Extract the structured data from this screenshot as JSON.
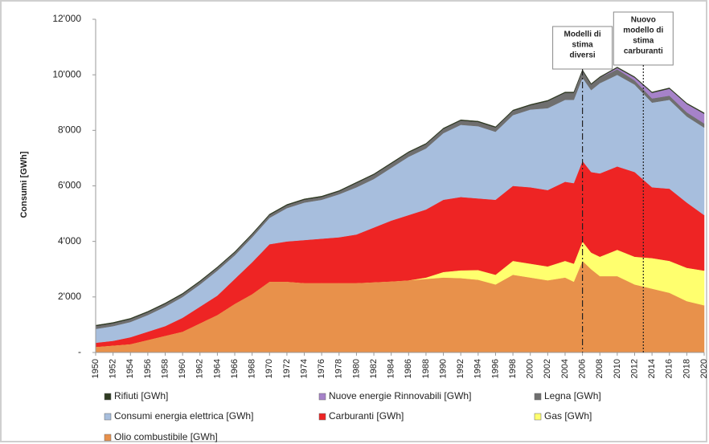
{
  "chart_data": {
    "type": "stacked_area",
    "y_label": "Consumi [GWh]",
    "x": [
      1950,
      1952,
      1954,
      1956,
      1958,
      1960,
      1962,
      1964,
      1966,
      1968,
      1970,
      1972,
      1974,
      1976,
      1978,
      1980,
      1982,
      1984,
      1986,
      1988,
      1990,
      1992,
      1994,
      1996,
      1998,
      2000,
      2002,
      2004,
      2005,
      2006,
      2007,
      2008,
      2010,
      2012,
      2014,
      2016,
      2018,
      2020
    ],
    "xlim": [
      1950,
      2020
    ],
    "xticks": [
      1950,
      1952,
      1954,
      1956,
      1958,
      1960,
      1962,
      1964,
      1966,
      1968,
      1970,
      1972,
      1974,
      1976,
      1978,
      1980,
      1982,
      1984,
      1986,
      1988,
      1990,
      1992,
      1994,
      1996,
      1998,
      2000,
      2002,
      2004,
      2006,
      2008,
      2010,
      2012,
      2014,
      2016,
      2018,
      2020
    ],
    "ylim": [
      0,
      12000
    ],
    "yticks": [
      {
        "value": 0,
        "label": "-"
      },
      {
        "value": 2000,
        "label": "2'000"
      },
      {
        "value": 4000,
        "label": "4'000"
      },
      {
        "value": 6000,
        "label": "6'000"
      },
      {
        "value": 8000,
        "label": "8'000"
      },
      {
        "value": 10000,
        "label": "10'000"
      },
      {
        "value": 12000,
        "label": "12'000"
      }
    ],
    "stack_order": "reverse",
    "series": [
      {
        "name": "Rifiuti [GWh]",
        "color": "#2f3b22",
        "values": [
          30,
          30,
          30,
          30,
          30,
          30,
          30,
          30,
          30,
          30,
          30,
          30,
          30,
          30,
          30,
          30,
          30,
          30,
          30,
          30,
          30,
          30,
          30,
          30,
          30,
          30,
          30,
          30,
          30,
          30,
          30,
          30,
          30,
          30,
          30,
          30,
          30,
          30
        ]
      },
      {
        "name": "Nuove energie Rinnovabili [GWh]",
        "color": "#a682c9",
        "values": [
          0,
          0,
          0,
          0,
          0,
          0,
          0,
          0,
          0,
          0,
          0,
          0,
          0,
          0,
          0,
          0,
          0,
          0,
          0,
          0,
          0,
          0,
          0,
          0,
          0,
          0,
          0,
          0,
          0,
          0,
          0,
          0,
          50,
          100,
          200,
          250,
          300,
          350
        ]
      },
      {
        "name": "Legna [GWh]",
        "color": "#6f6f6f",
        "values": [
          100,
          100,
          100,
          100,
          100,
          100,
          100,
          100,
          100,
          100,
          100,
          100,
          100,
          100,
          100,
          150,
          150,
          150,
          150,
          150,
          150,
          150,
          150,
          150,
          150,
          150,
          250,
          250,
          250,
          250,
          200,
          200,
          200,
          150,
          150,
          150,
          150,
          150
        ]
      },
      {
        "name": "Consumi energia elettrica [GWh]",
        "color": "#a7bedd",
        "values": [
          500,
          530,
          550,
          600,
          700,
          750,
          800,
          900,
          850,
          900,
          950,
          1200,
          1350,
          1400,
          1550,
          1700,
          1750,
          1900,
          2100,
          2200,
          2400,
          2600,
          2600,
          2450,
          2550,
          2800,
          2950,
          2950,
          3000,
          3000,
          2950,
          3250,
          3300,
          3150,
          3050,
          3200,
          3100,
          3150
        ]
      },
      {
        "name": "Carburanti [GWh]",
        "color": "#ee2424",
        "values": [
          150,
          170,
          250,
          300,
          350,
          500,
          600,
          700,
          900,
          1150,
          1350,
          1450,
          1550,
          1600,
          1650,
          1750,
          1970,
          2190,
          2350,
          2450,
          2600,
          2640,
          2580,
          2700,
          2700,
          2750,
          2750,
          2850,
          2900,
          2900,
          2900,
          3000,
          3000,
          3050,
          2550,
          2600,
          2350,
          2000
        ]
      },
      {
        "name": "Gas [GWh]",
        "color": "#ffff6e",
        "values": [
          0,
          0,
          0,
          0,
          0,
          0,
          0,
          0,
          0,
          0,
          0,
          0,
          0,
          0,
          0,
          0,
          0,
          0,
          0,
          50,
          200,
          280,
          350,
          350,
          500,
          500,
          500,
          600,
          650,
          700,
          600,
          700,
          950,
          1000,
          1100,
          1150,
          1200,
          1250
        ]
      },
      {
        "name": "Olio combustibile [GWh]",
        "color": "#e8914b",
        "values": [
          200,
          250,
          300,
          450,
          600,
          750,
          1050,
          1350,
          1750,
          2100,
          2550,
          2550,
          2500,
          2500,
          2500,
          2500,
          2530,
          2560,
          2600,
          2650,
          2700,
          2680,
          2620,
          2450,
          2800,
          2700,
          2600,
          2700,
          2550,
          3300,
          3000,
          2750,
          2750,
          2450,
          2300,
          2150,
          1850,
          1700
        ]
      }
    ],
    "annotations": [
      {
        "x": 2006,
        "lines": [
          "Modelli di",
          "stima",
          "diversi"
        ],
        "style": "dashdot"
      },
      {
        "x": 2013,
        "lines": [
          "Nuovo",
          "modello di",
          "stima",
          "carburanti"
        ],
        "style": "dotted"
      }
    ]
  }
}
